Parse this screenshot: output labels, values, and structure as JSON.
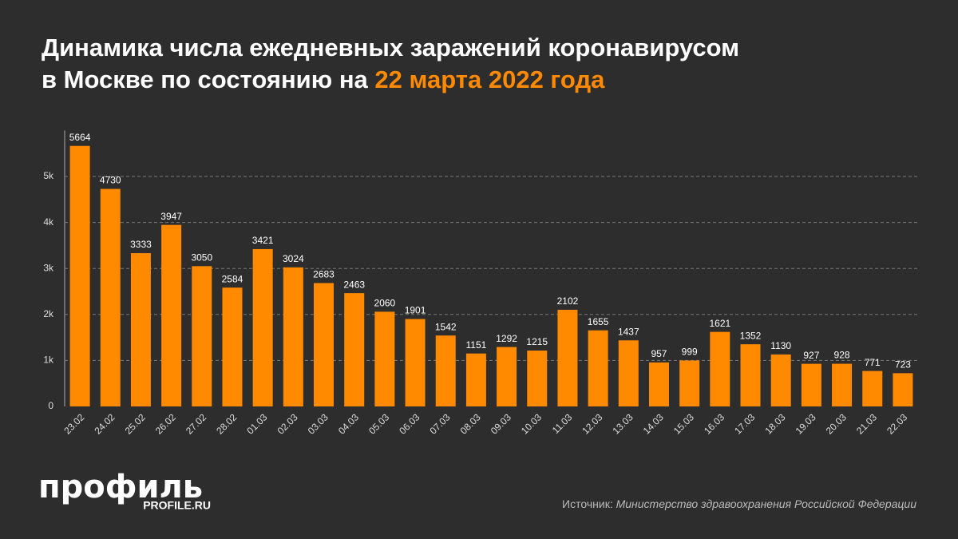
{
  "chart_data": {
    "type": "bar",
    "title_lines": [
      "Динамика числа ежедневных заражений коронавирусом",
      "в Москве по состоянию на"
    ],
    "title_highlight": "22 марта 2022 года",
    "categories": [
      "23.02",
      "24.02",
      "25.02",
      "26.02",
      "27.02",
      "28.02",
      "01.03",
      "02.03",
      "03.03",
      "04.03",
      "05.03",
      "06.03",
      "07.03",
      "08.03",
      "09.03",
      "10.03",
      "11.03",
      "12.03",
      "13.03",
      "14.03",
      "15.03",
      "16.03",
      "17.03",
      "18.03",
      "19.03",
      "20.03",
      "21.03",
      "22.03"
    ],
    "values": [
      5664,
      4730,
      3333,
      3947,
      3050,
      2584,
      3421,
      3024,
      2683,
      2463,
      2060,
      1901,
      1542,
      1151,
      1292,
      1215,
      2102,
      1655,
      1437,
      957,
      999,
      1621,
      1352,
      1130,
      927,
      928,
      771,
      723
    ],
    "color": "#ff8a00",
    "ylim": [
      0,
      6000
    ],
    "yticks": [
      0,
      {
        "value": 1000,
        "label": "1k"
      },
      {
        "value": 2000,
        "label": "2k"
      },
      {
        "value": 3000,
        "label": "3k"
      },
      {
        "value": 4000,
        "label": "4k"
      },
      {
        "value": 5000,
        "label": "5k"
      }
    ],
    "grid": true,
    "source_label": "Источник:",
    "source": "Министерство здравоохранения Российской Федерации",
    "logo": "профиль",
    "logo_site": "PROFILE.RU"
  }
}
